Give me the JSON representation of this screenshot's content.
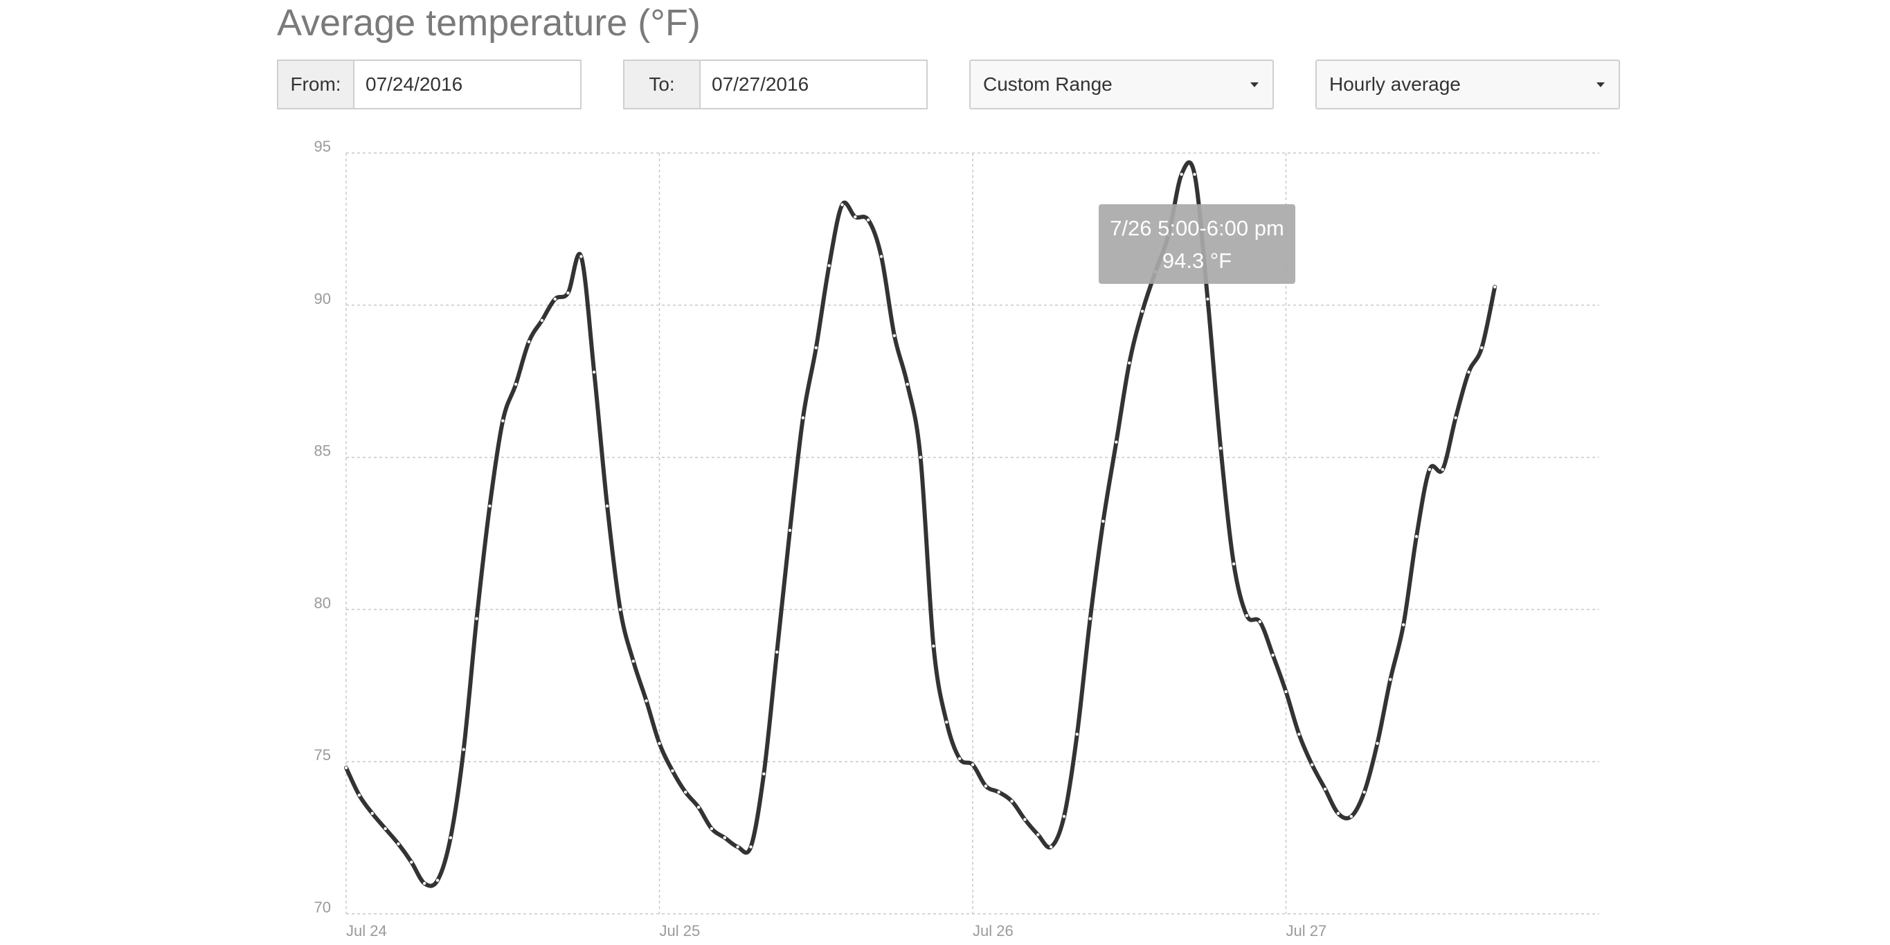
{
  "header": {
    "title": "Average temperature (°F)"
  },
  "controls": {
    "from_label": "From:",
    "from_value": "07/24/2016",
    "to_label": "To:",
    "to_value": "07/27/2016",
    "range_select": "Custom Range",
    "aggregation_select": "Hourly average"
  },
  "colors": {
    "line": "#333333",
    "grid": "#c8c8c8",
    "tick": "#9a9a9a",
    "tooltip_bg": "#a9a9a9"
  },
  "chart_data": {
    "type": "line",
    "title": "Average temperature (°F)",
    "xlabel": "",
    "ylabel": "",
    "x_unit": "hour",
    "x_start": "2016-07-24 00:00",
    "x_ticks": [
      "Jul 24",
      "Jul 25",
      "Jul 26",
      "Jul 27"
    ],
    "ylim": [
      70,
      95
    ],
    "yticks": [
      70,
      75,
      80,
      85,
      90,
      95
    ],
    "grid": true,
    "legend": "none",
    "series": [
      {
        "values": [
          74.8,
          73.9,
          73.3,
          72.8,
          72.3,
          71.7,
          71.0,
          71.1,
          72.5,
          75.4,
          79.7,
          83.4,
          86.2,
          87.4,
          88.8,
          89.5,
          90.2,
          90.4,
          91.6,
          87.8,
          83.4,
          80.0,
          78.3,
          77.0,
          75.6,
          74.7,
          74.0,
          73.5,
          72.8,
          72.5,
          72.2,
          72.2,
          74.6,
          78.6,
          82.6,
          86.3,
          88.6,
          91.3,
          93.3,
          92.9,
          92.8,
          91.6,
          89.0,
          87.4,
          85.0,
          78.8,
          76.3,
          75.1,
          74.9,
          74.2,
          74.0,
          73.7,
          73.1,
          72.6,
          72.2,
          73.2,
          75.9,
          79.7,
          82.9,
          85.5,
          88.1,
          89.8,
          91.1,
          92.3,
          94.3,
          94.3,
          90.2,
          85.3,
          81.5,
          79.8,
          79.6,
          78.5,
          77.3,
          75.9,
          74.9,
          74.1,
          73.3,
          73.2,
          74.0,
          75.6,
          77.7,
          79.5,
          82.4,
          84.6,
          84.6,
          86.3,
          87.8,
          88.6,
          90.6
        ]
      }
    ],
    "tooltip": {
      "line1": "7/26 5:00-6:00 pm",
      "line2": "94.3 °F",
      "index": 65
    }
  }
}
